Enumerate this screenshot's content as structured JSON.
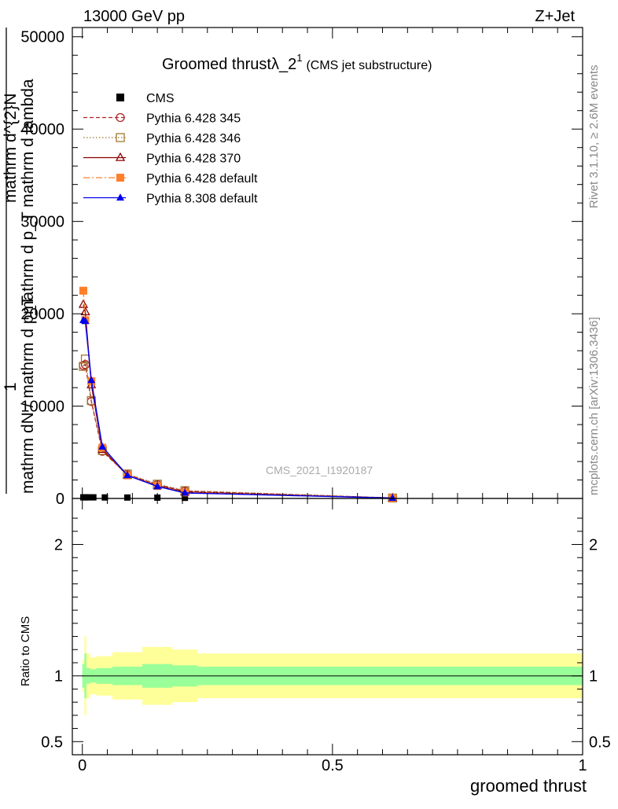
{
  "header": {
    "energy_label": "13000 GeV pp",
    "process_label": "Z+Jet"
  },
  "side_labels": {
    "rivet": "Rivet 3.1.10, ≥ 2.6M events",
    "mcplots": "mcplots.cern.ch [arXiv:1306.3436]"
  },
  "watermark": "CMS_2021_I1920187",
  "chart_data": [
    {
      "type": "line",
      "title_main": "Groomed thrustλ_2",
      "title_sup": "1",
      "title_sub": "(CMS jet substructure)",
      "ylabel_top": "1",
      "ylabel_frac_num": "mathrm d^{2}N",
      "ylabel_frac_den": "mathrm d p_T mathrm d lambda",
      "ylabel_norm": "mathrm dN / mathrm d p_T",
      "ylim": [
        0,
        51000
      ],
      "xlim": [
        -0.02,
        1.0
      ],
      "yticks": [
        0,
        10000,
        20000,
        30000,
        40000,
        50000
      ],
      "ytick_labels": [
        "0",
        "10000",
        "20000",
        "30000",
        "40000",
        "50000"
      ],
      "legend_position": "top-left",
      "series": [
        {
          "name": "CMS",
          "color": "#000000",
          "marker": "filled-square",
          "line": "none",
          "x": [
            0.002,
            0.006,
            0.012,
            0.022,
            0.045,
            0.09,
            0.15,
            0.205,
            0.62
          ],
          "y": [
            120,
            120,
            120,
            120,
            110,
            100,
            90,
            70,
            10
          ]
        },
        {
          "name": "Pythia 6.428 345",
          "color": "#b22222",
          "marker": "open-circle",
          "line": "dashed",
          "x": [
            0.002,
            0.006,
            0.018,
            0.04,
            0.09,
            0.15,
            0.205,
            0.62
          ],
          "y": [
            14400,
            14500,
            10500,
            5100,
            2600,
            1500,
            800,
            50
          ]
        },
        {
          "name": "Pythia 6.428 346",
          "color": "#a07830",
          "marker": "open-square",
          "line": "dotted",
          "x": [
            0.002,
            0.006,
            0.018,
            0.04,
            0.09,
            0.15,
            0.205,
            0.62
          ],
          "y": [
            14300,
            15100,
            10600,
            5200,
            2650,
            1550,
            850,
            50
          ]
        },
        {
          "name": "Pythia 6.428 370",
          "color": "#8b0000",
          "marker": "open-triangle",
          "line": "solid",
          "x": [
            0.002,
            0.006,
            0.018,
            0.04,
            0.09,
            0.15,
            0.205,
            0.62
          ],
          "y": [
            21000,
            20200,
            12300,
            5300,
            2500,
            1400,
            700,
            40
          ]
        },
        {
          "name": "Pythia 6.428 default",
          "color": "#ff7f2a",
          "marker": "filled-square",
          "line": "dashdot",
          "x": [
            0.002,
            0.006,
            0.018,
            0.04,
            0.09,
            0.15,
            0.205,
            0.62
          ],
          "y": [
            22500,
            19300,
            12700,
            5500,
            2500,
            1350,
            650,
            40
          ]
        },
        {
          "name": "Pythia 8.308 default",
          "color": "#0000ee",
          "marker": "filled-triangle",
          "line": "solid",
          "x": [
            0.002,
            0.006,
            0.018,
            0.04,
            0.09,
            0.15,
            0.205,
            0.62
          ],
          "y": [
            19300,
            19200,
            12800,
            5600,
            2500,
            1300,
            600,
            40
          ]
        }
      ]
    },
    {
      "type": "area",
      "ylabel": "Ratio to CMS",
      "xlabel": "groomed thrust",
      "ylim": [
        0.4,
        2.35
      ],
      "xlim": [
        -0.02,
        1.0
      ],
      "yticks": [
        0.5,
        1,
        2
      ],
      "ytick_labels": [
        "0.5",
        "1",
        "2"
      ],
      "xticks": [
        0,
        0.5,
        1
      ],
      "xtick_labels": [
        "0",
        "0.5",
        "1"
      ],
      "reference_line": 1,
      "bins": [
        0,
        0.004,
        0.008,
        0.016,
        0.028,
        0.06,
        0.12,
        0.18,
        0.23,
        1.0
      ],
      "band_inner_color": "#99ff99",
      "band_outer_color": "#ffff99",
      "band_inner_halfwidth": [
        0.09,
        0.17,
        0.06,
        0.05,
        0.06,
        0.07,
        0.09,
        0.08,
        0.07
      ],
      "band_outer_halfwidth": [
        0.12,
        0.3,
        0.17,
        0.14,
        0.15,
        0.18,
        0.22,
        0.2,
        0.17
      ]
    }
  ]
}
